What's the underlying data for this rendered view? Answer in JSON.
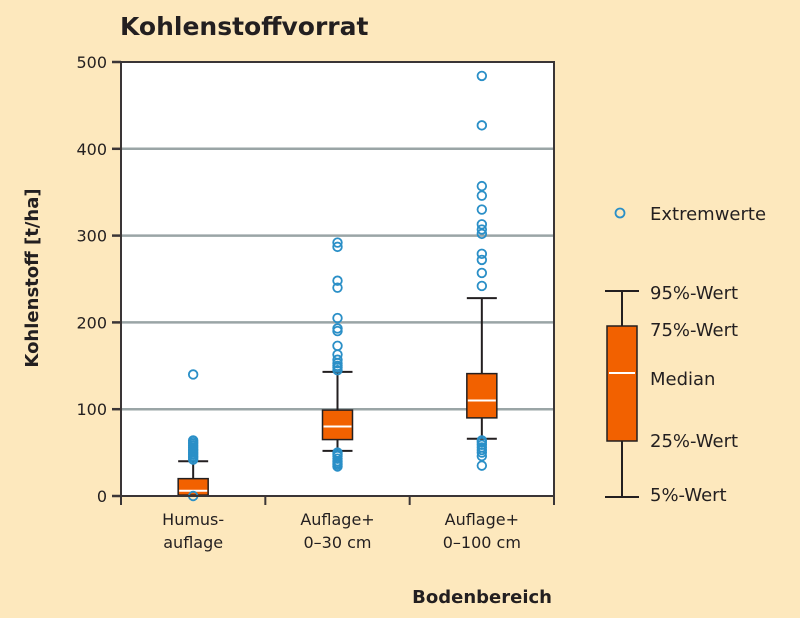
{
  "chart_data": {
    "type": "box",
    "title": "Kohlenstoffvorrat",
    "xlabel": "Bodenbereich",
    "ylabel": "Kohlenstoff [t/ha]",
    "ylim": [
      0,
      500
    ],
    "yticks": [
      0,
      100,
      200,
      300,
      400,
      500
    ],
    "grid": true,
    "categories": [
      {
        "lines": [
          "Humus-",
          "auflage"
        ]
      },
      {
        "lines": [
          "Auflage+",
          "0–30 cm"
        ]
      },
      {
        "lines": [
          "Auflage+",
          "0–100 cm"
        ]
      }
    ],
    "boxes": [
      {
        "p5": 0,
        "p25": 1,
        "median": 6,
        "p75": 20,
        "p95": 40,
        "outliers": [
          0,
          42,
          44,
          46,
          48,
          50,
          52,
          54,
          56,
          58,
          60,
          62,
          64,
          140
        ]
      },
      {
        "p5": 52,
        "p25": 65,
        "median": 80,
        "p75": 99,
        "p95": 143,
        "outliers": [
          34,
          36,
          38,
          40,
          43,
          46,
          48,
          50,
          145,
          148,
          150,
          153,
          157,
          163,
          173,
          190,
          193,
          205,
          240,
          248,
          287,
          292
        ]
      },
      {
        "p5": 66,
        "p25": 90,
        "median": 110,
        "p75": 141,
        "p95": 228,
        "outliers": [
          35,
          46,
          50,
          53,
          56,
          59,
          62,
          64,
          242,
          257,
          272,
          279,
          302,
          307,
          313,
          330,
          346,
          357,
          427,
          484
        ]
      }
    ],
    "colors": {
      "box_fill": "#f26100",
      "outlier": "#2a8fc7",
      "median": "#ffffff",
      "grid": "#9aa5a6",
      "background": "#fde8bd",
      "plot_bg": "#ffffff"
    },
    "legend": {
      "placement": "right",
      "outlier_label": "Extremwerte",
      "labels": {
        "p95": "95%-Wert",
        "p75": "75%-Wert",
        "median": "Median",
        "p25": "25%-Wert",
        "p5": "5%-Wert"
      }
    }
  }
}
